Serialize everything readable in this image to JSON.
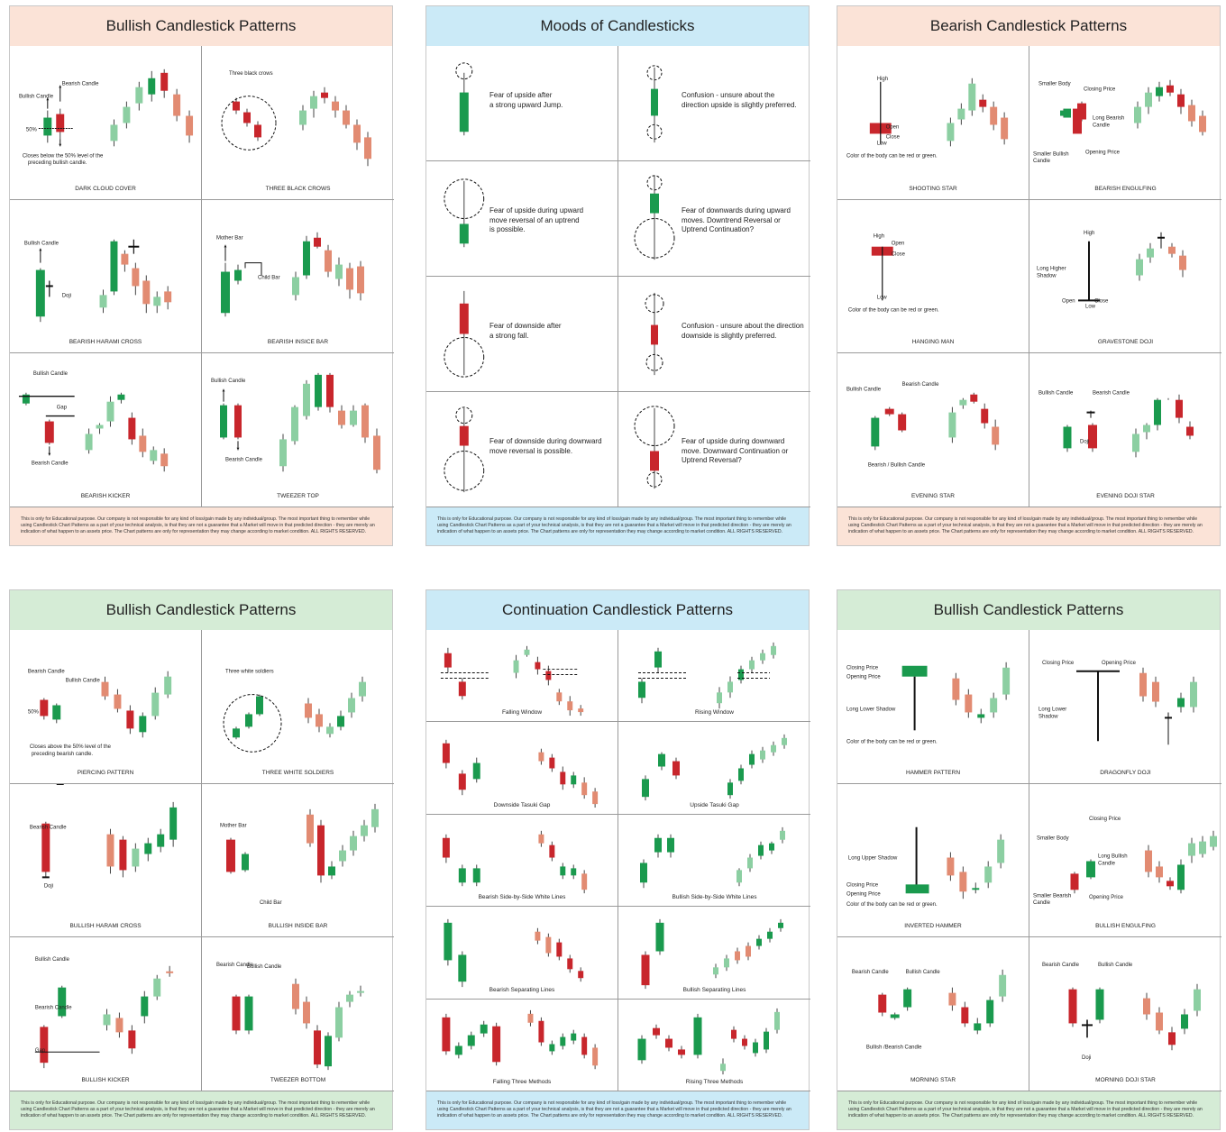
{
  "footer_text": "This is only for Educational purpose. Our company is not responsible for any kind of loss/gain made by any individual/group. The most important thing to remember while using Candlestick Chart Patterns as a part of your technical analysis, is that they are not a guarantee that a Market will move in that predicted direction - they are merely an indication of what happen to an assets price. The Chart patterns are only for representation they may change according to market condition. ALL RIGHTS RESERVED.",
  "colors": {
    "green": "#1a9a4e",
    "light_green": "#8ccfa2",
    "red": "#c8262c",
    "light_red": "#e28b72",
    "peach_bg": "#fbe3d7",
    "blue_bg": "#cbeaf7",
    "green_bg": "#d5ecd6"
  },
  "posters": [
    {
      "title": "Bullish Candlestick Patterns",
      "bg": "#fbe3d7",
      "cells": [
        {
          "label": "DARK CLOUD COVER",
          "notes": [
            "Bearish Candle",
            "Bullish Candle",
            "50%",
            "Closes below the 50% level of the",
            "preceding bullish candle."
          ]
        },
        {
          "label": "THREE BLACK CROWS",
          "notes": [
            "Three black crows"
          ]
        },
        {
          "label": "BEARISH HARAMI CROSS",
          "notes": [
            "Bullish Candle",
            "Doji"
          ]
        },
        {
          "label": "BEARISH INSICE BAR",
          "notes": [
            "Mother Bar",
            "Child Bar"
          ]
        },
        {
          "label": "BEARISH KICKER",
          "notes": [
            "Bullish Candle",
            "Gap",
            "Bearish Candle"
          ]
        },
        {
          "label": "TWEEZER TOP",
          "notes": [
            "Bullish Candle",
            "Bearish Candle"
          ]
        }
      ]
    },
    {
      "title": "Moods of Candlesticks",
      "bg": "#cbeaf7",
      "cells": [
        {
          "text": "Fear of upside after\na strong upward Jump."
        },
        {
          "text": "Confusion - unsure about the\ndirection upside is slightly preferred."
        },
        {
          "text": "Fear of upside during upward\nmove reversal of an uptrend\nis possible."
        },
        {
          "text": "Fear of downwards during upward\nmoves. Downtrend Reversal or\nUptrend Continuation?"
        },
        {
          "text": "Fear of downside after\na strong fall."
        },
        {
          "text": "Confusion - unsure about the direction\ndownside is slightly preferred."
        },
        {
          "text": "Fear of downside during downward\nmove reversal is possible."
        },
        {
          "text": "Fear of upside during downward\nmove. Downward Continuation or\nUptrend Reversal?"
        }
      ]
    },
    {
      "title": "Bearish Candlestick Patterns",
      "bg": "#fbe3d7",
      "cells": [
        {
          "label": "SHOOTING STAR",
          "notes": [
            "High",
            "Open",
            "Close",
            "Low",
            "Color of the body can be red or green."
          ]
        },
        {
          "label": "BEARISH ENGULFING",
          "notes": [
            "Smaller Body",
            "Closing Price",
            "Long Bearish",
            "Candle",
            "Smaller Bullish",
            "Candle",
            "Opening Price"
          ]
        },
        {
          "label": "HANGING MAN",
          "notes": [
            "High",
            "Open",
            "Close",
            "Low",
            "Color of the body can be red or green."
          ]
        },
        {
          "label": "GRAVESTONE DOJI",
          "notes": [
            "High",
            "Long Higher",
            "Shadow",
            "Open",
            "Close",
            "Low"
          ]
        },
        {
          "label": "EVENING STAR",
          "notes": [
            "Bullish Candle",
            "Bearish Candle",
            "Bearish / Bullish Candle"
          ]
        },
        {
          "label": "EVENING DOJI STAR",
          "notes": [
            "Bullish Candle",
            "Bearish Candle",
            "Doji"
          ]
        }
      ]
    },
    {
      "title": "Bullish Candlestick Patterns",
      "bg": "#d5ecd6",
      "cells": [
        {
          "label": "PIERCING PATTERN",
          "notes": [
            "Bearish Candle",
            "Bullish Candle",
            "50%",
            "Closes above the 50% level of the",
            "preceding bearish candle."
          ]
        },
        {
          "label": "THREE WHITE SOLDIERS",
          "notes": [
            "Three white soldiers"
          ]
        },
        {
          "label": "BULLISH HARAMI CROSS",
          "notes": [
            "Bearish Candle",
            "Doji"
          ]
        },
        {
          "label": "BULLISH INSIDE BAR",
          "notes": [
            "Mother Bar",
            "Child Bar"
          ]
        },
        {
          "label": "BULLISH KICKER",
          "notes": [
            "Bullish Candle",
            "Bearish Candle",
            "Gap"
          ]
        },
        {
          "label": "TWEEZER BOTTOM",
          "notes": [
            "Bearish Candle",
            "Bullish Candle"
          ]
        }
      ]
    },
    {
      "title": "Continuation Candlestick Patterns",
      "bg": "#cbeaf7",
      "cells": [
        {
          "label": "Falling Window"
        },
        {
          "label": "Rising Window"
        },
        {
          "label": "Downside Tasuki Gap"
        },
        {
          "label": "Upside Tasuki Gap"
        },
        {
          "label": "Bearish Side-by-Side White Lines"
        },
        {
          "label": "Bullish Side-by-Side White Lines"
        },
        {
          "label": "Bearish Separating Lines"
        },
        {
          "label": "Bullish Separating Lines"
        },
        {
          "label": "Falling Three Methods"
        },
        {
          "label": "Rising Three Methods"
        }
      ]
    },
    {
      "title": "Bullish Candlestick Patterns",
      "bg": "#d5ecd6",
      "cells": [
        {
          "label": "HAMMER PATTERN",
          "notes": [
            "Closing Price",
            "Opening Price",
            "Long Lower Shadow",
            "Color of the body can be red or green."
          ]
        },
        {
          "label": "DRAGONFLY DOJI",
          "notes": [
            "Closing Price",
            "Opening Price",
            "Long Lower",
            "Shadow"
          ]
        },
        {
          "label": "INVERTED HAMMER",
          "notes": [
            "Long Upper Shadow",
            "Closing Price",
            "Opening Price",
            "Color of the body can be red or green."
          ]
        },
        {
          "label": "BULLISH ENGULFING",
          "notes": [
            "Closing Price",
            "Smaller Body",
            "Long Bullish",
            "Candle",
            "Smaller Bearish",
            "Candle",
            "Opening Price"
          ]
        },
        {
          "label": "MORNING STAR",
          "notes": [
            "Bearish Candle",
            "Bullish Candle",
            "Bullish /Bearish Candle"
          ]
        },
        {
          "label": "MORNING DOJI STAR",
          "notes": [
            "Bearish Candle",
            "Bullish Candle",
            "Doji"
          ]
        }
      ]
    }
  ]
}
